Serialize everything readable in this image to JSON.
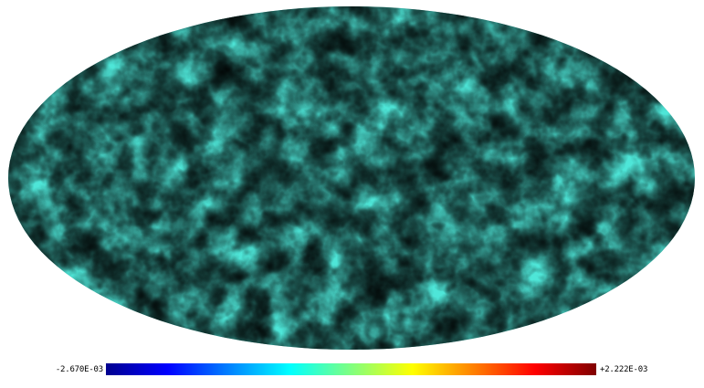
{
  "map": {
    "projection": "mollweide",
    "colormap": "jet",
    "background": "#ffffff"
  },
  "colorbar": {
    "min_label": "-2.670E-03",
    "max_label": "+2.222E-03",
    "colors": [
      "#00008f",
      "#0000ff",
      "#0080ff",
      "#00ffff",
      "#80ff80",
      "#ffff00",
      "#ff8000",
      "#ff0000",
      "#800000"
    ]
  }
}
